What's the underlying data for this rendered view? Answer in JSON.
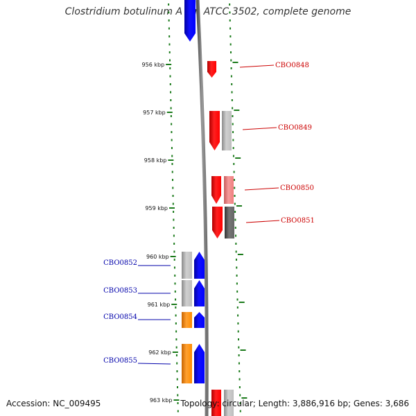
{
  "title": "Clostridium botulinum A str. ATCC 3502, complete genome",
  "footer": {
    "accession": "Accession: NC_009495",
    "summary": "Topology: circular; Length: 3,886,916 bp; Genes: 3,686"
  },
  "colors": {
    "forward_cds": "#ff0000",
    "reverse_cds": "#0000ff",
    "reverse_feature_alt": "#ff8c00",
    "tick": "#1a7a1a",
    "backbone": "#808080",
    "forward_label": "#cc0000",
    "reverse_label": "#0000aa",
    "gray_feature": "#bdbdbd",
    "dark_gray_feature": "#666666",
    "pink_feature": "#f08080"
  },
  "ruler": {
    "ticks": [
      {
        "label": "956 kbp"
      },
      {
        "label": "957 kbp"
      },
      {
        "label": "958 kbp"
      },
      {
        "label": "959 kbp"
      },
      {
        "label": "960 kbp"
      },
      {
        "label": "961 kbp"
      },
      {
        "label": "962 kbp"
      },
      {
        "label": "963 kbp"
      }
    ]
  },
  "genes": [
    {
      "name": "CBO0848",
      "strand": "forward"
    },
    {
      "name": "CBO0849",
      "strand": "forward"
    },
    {
      "name": "CBO0850",
      "strand": "forward"
    },
    {
      "name": "CBO0851",
      "strand": "forward"
    },
    {
      "name": "CBO0852",
      "strand": "reverse"
    },
    {
      "name": "CBO0853",
      "strand": "reverse"
    },
    {
      "name": "CBO0854",
      "strand": "reverse"
    },
    {
      "name": "CBO0855",
      "strand": "reverse"
    }
  ]
}
